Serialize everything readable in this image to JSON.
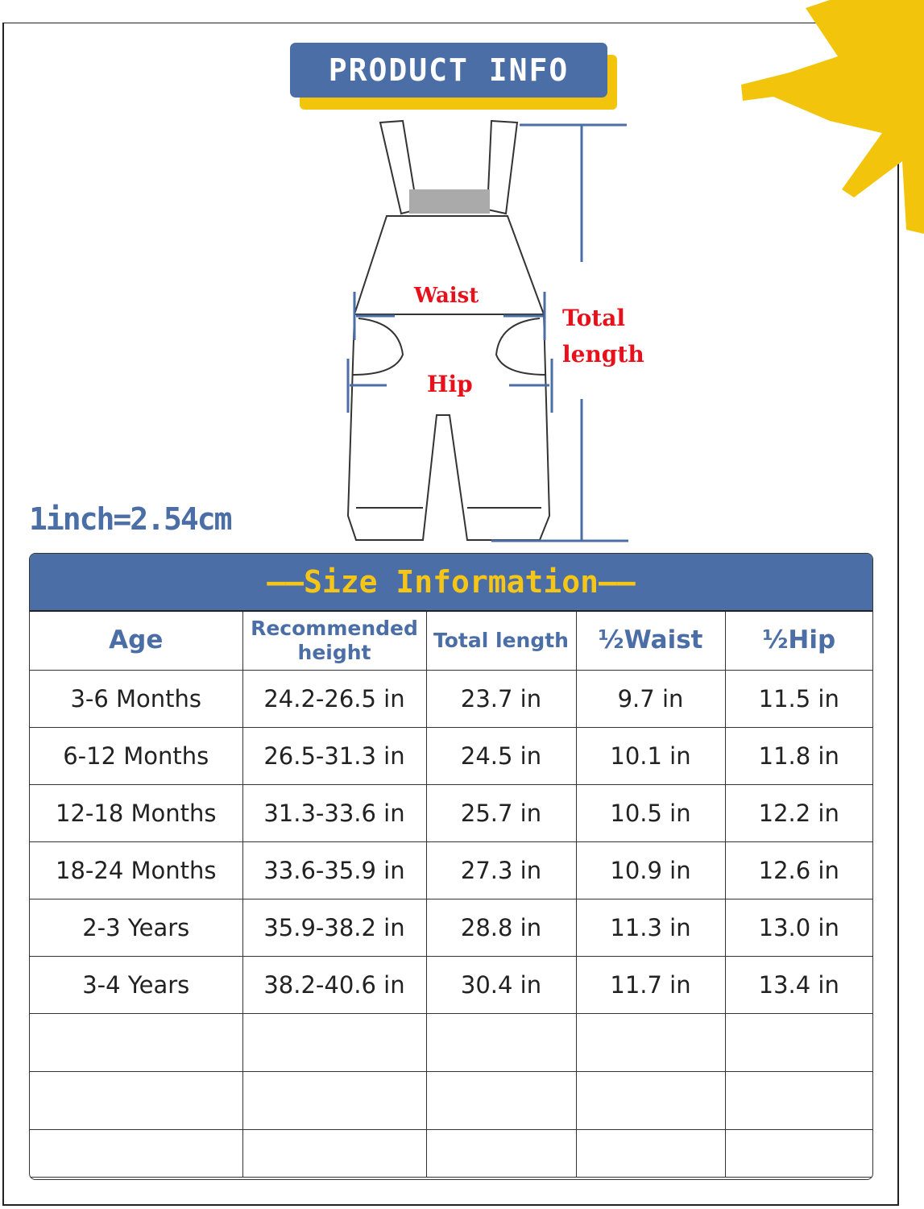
{
  "header": {
    "title": "PRODUCT INFO"
  },
  "diagram_labels": {
    "waist": "Waist",
    "hip": "Hip",
    "total_length": "Total length"
  },
  "conversion": "1inch=2.54cm",
  "colors": {
    "brand_blue": "#4a6ea5",
    "accent_yellow": "#f2c40c",
    "label_red": "#e8101a"
  },
  "table": {
    "title": "——Size Information——",
    "columns": [
      "Age",
      "Recommended height",
      "Total length",
      "½Waist",
      "½Hip"
    ],
    "rows": [
      [
        "3-6 Months",
        "24.2-26.5 in",
        "23.7 in",
        "9.7 in",
        "11.5 in"
      ],
      [
        "6-12 Months",
        "26.5-31.3 in",
        "24.5 in",
        "10.1 in",
        "11.8 in"
      ],
      [
        "12-18 Months",
        "31.3-33.6 in",
        "25.7 in",
        "10.5 in",
        "12.2 in"
      ],
      [
        "18-24 Months",
        "33.6-35.9 in",
        "27.3 in",
        "10.9 in",
        "12.6 in"
      ],
      [
        "2-3 Years",
        "35.9-38.2 in",
        "28.8 in",
        "11.3 in",
        "13.0 in"
      ],
      [
        "3-4 Years",
        "38.2-40.6 in",
        "30.4 in",
        "11.7 in",
        "13.4 in"
      ]
    ]
  }
}
